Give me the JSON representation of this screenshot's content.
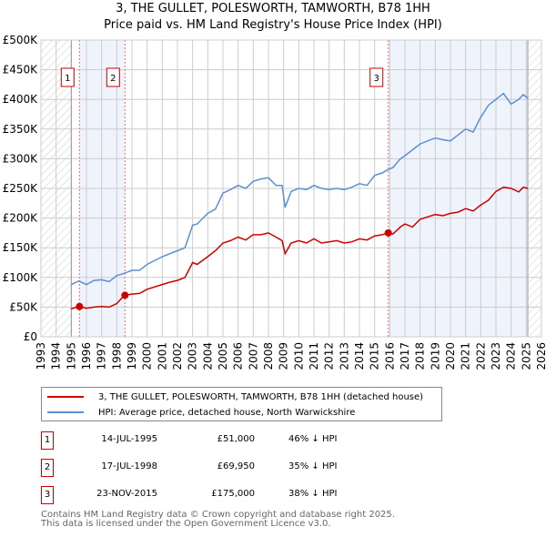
{
  "title": [
    "3, THE GULLET, POLESWORTH, TAMWORTH, B78 1HH",
    "Price paid vs. HM Land Registry's House Price Index (HPI)"
  ],
  "chart_data": {
    "type": "line",
    "xlim": [
      1993,
      2026
    ],
    "ylim": [
      0,
      500000
    ],
    "xticks": [
      "1993",
      "1994",
      "1995",
      "1996",
      "1997",
      "1998",
      "1999",
      "2000",
      "2001",
      "2002",
      "2003",
      "2004",
      "2005",
      "2006",
      "2007",
      "2008",
      "2009",
      "2010",
      "2011",
      "2012",
      "2013",
      "2014",
      "2015",
      "2016",
      "2017",
      "2018",
      "2019",
      "2020",
      "2021",
      "2022",
      "2023",
      "2024",
      "2025",
      "2026"
    ],
    "yticks": [
      {
        "v": 0,
        "l": "£0"
      },
      {
        "v": 50000,
        "l": "£50K"
      },
      {
        "v": 100000,
        "l": "£100K"
      },
      {
        "v": 150000,
        "l": "£150K"
      },
      {
        "v": 200000,
        "l": "£200K"
      },
      {
        "v": 250000,
        "l": "£250K"
      },
      {
        "v": 300000,
        "l": "£300K"
      },
      {
        "v": 350000,
        "l": "£350K"
      },
      {
        "v": 400000,
        "l": "£400K"
      },
      {
        "v": 450000,
        "l": "£450K"
      },
      {
        "v": 500000,
        "l": "£500K"
      }
    ],
    "data_range": [
      1995,
      2025.1
    ],
    "series": [
      {
        "name": "3, THE GULLET, POLESWORTH, TAMWORTH, B78 1HH (detached house)",
        "color": "#cc0000",
        "x": [
          1995,
          1995.5,
          1996,
          1996.5,
          1997,
          1997.5,
          1998,
          1998.5,
          1999,
          1999.5,
          2000,
          2001,
          2001.5,
          2002,
          2002.5,
          2003,
          2003.3,
          2004,
          2004.5,
          2005,
          2005.5,
          2006,
          2006.5,
          2007,
          2007.5,
          2008,
          2008.5,
          2008.9,
          2009.1,
          2009.5,
          2010,
          2010.5,
          2011,
          2011.5,
          2012,
          2012.5,
          2013,
          2013.5,
          2014,
          2014.5,
          2015,
          2015.5,
          2015.9,
          2016.2,
          2016.7,
          2017,
          2017.5,
          2018,
          2018.5,
          2019,
          2019.5,
          2020,
          2020.5,
          2021,
          2021.5,
          2022,
          2022.5,
          2023,
          2023.5,
          2024,
          2024.5,
          2024.8,
          2025.1
        ],
        "y": [
          47000,
          51000,
          48000,
          50000,
          51000,
          50000,
          56000,
          70000,
          72000,
          73000,
          80000,
          88000,
          92000,
          95000,
          100000,
          125000,
          122000,
          135000,
          145000,
          158000,
          162000,
          168000,
          163000,
          172000,
          172000,
          175000,
          168000,
          162000,
          140000,
          158000,
          162000,
          158000,
          165000,
          158000,
          160000,
          162000,
          158000,
          160000,
          165000,
          163000,
          170000,
          172000,
          175000,
          173000,
          185000,
          190000,
          185000,
          198000,
          202000,
          206000,
          204000,
          208000,
          210000,
          216000,
          212000,
          222000,
          230000,
          245000,
          252000,
          250000,
          244000,
          252000,
          250000
        ]
      },
      {
        "name": "HPI: Average price, detached house, North Warwickshire",
        "color": "#5b8fd4",
        "x": [
          1995,
          1995.5,
          1996,
          1996.5,
          1997,
          1997.5,
          1998,
          1998.5,
          1999,
          1999.5,
          2000,
          2001,
          2001.5,
          2002,
          2002.5,
          2003,
          2003.3,
          2004,
          2004.5,
          2005,
          2005.5,
          2006,
          2006.5,
          2007,
          2007.5,
          2008,
          2008.5,
          2008.9,
          2009.1,
          2009.5,
          2010,
          2010.5,
          2011,
          2011.5,
          2012,
          2012.5,
          2013,
          2013.5,
          2014,
          2014.5,
          2015,
          2015.5,
          2015.9,
          2016.2,
          2016.7,
          2017,
          2017.5,
          2018,
          2018.5,
          2019,
          2019.5,
          2020,
          2020.5,
          2021,
          2021.5,
          2022,
          2022.5,
          2023,
          2023.5,
          2024,
          2024.5,
          2024.8,
          2025.1
        ],
        "y": [
          88000,
          94000,
          88000,
          95000,
          96000,
          93000,
          103000,
          107000,
          112000,
          112000,
          122000,
          135000,
          140000,
          145000,
          150000,
          188000,
          190000,
          208000,
          215000,
          242000,
          248000,
          255000,
          250000,
          262000,
          266000,
          268000,
          255000,
          255000,
          218000,
          245000,
          250000,
          248000,
          255000,
          250000,
          248000,
          250000,
          248000,
          252000,
          258000,
          255000,
          272000,
          276000,
          282000,
          285000,
          300000,
          305000,
          315000,
          325000,
          330000,
          335000,
          332000,
          330000,
          340000,
          350000,
          345000,
          370000,
          390000,
          400000,
          410000,
          392000,
          400000,
          408000,
          402000
        ]
      }
    ],
    "sales": [
      {
        "label": "1",
        "x": 1995.54,
        "y": 51000,
        "date": "14-JUL-1995",
        "price": "£51,000",
        "hpi": "46% ↓ HPI"
      },
      {
        "label": "2",
        "x": 1998.54,
        "y": 69950,
        "date": "17-JUL-1998",
        "price": "£69,950",
        "hpi": "35% ↓ HPI"
      },
      {
        "label": "3",
        "x": 2015.9,
        "y": 175000,
        "date": "23-NOV-2015",
        "price": "£175,000",
        "hpi": "38% ↓ HPI"
      }
    ]
  },
  "footer": [
    "Contains HM Land Registry data © Crown copyright and database right 2025.",
    "This data is licensed under the Open Government Licence v3.0."
  ]
}
